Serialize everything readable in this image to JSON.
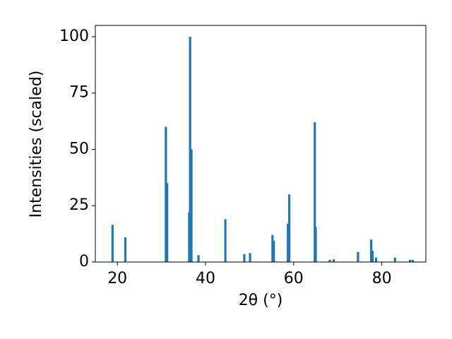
{
  "chart_data": {
    "type": "bar",
    "x_label": "2θ (°)",
    "y_label": "Intensities (scaled)",
    "x": [
      18.9,
      21.8,
      31.0,
      31.3,
      36.3,
      36.5,
      36.8,
      38.4,
      44.5,
      48.8,
      50.1,
      55.2,
      55.5,
      58.7,
      59.0,
      64.8,
      65.0,
      68.2,
      69.1,
      74.6,
      77.6,
      77.9,
      78.7,
      83.0,
      86.4,
      87.0
    ],
    "values": [
      16.5,
      11,
      60,
      35,
      22,
      100,
      50,
      3,
      19,
      3.5,
      4,
      12,
      9.5,
      17,
      30,
      62,
      15.5,
      1,
      1.2,
      4.5,
      10,
      5,
      2,
      2,
      1,
      1
    ],
    "color": "#1f77b4",
    "xlim": [
      15,
      90
    ],
    "ylim": [
      0,
      105
    ],
    "xticks": [
      20,
      40,
      60,
      80
    ],
    "yticks": [
      0,
      25,
      50,
      75,
      100
    ],
    "grid": false
  }
}
